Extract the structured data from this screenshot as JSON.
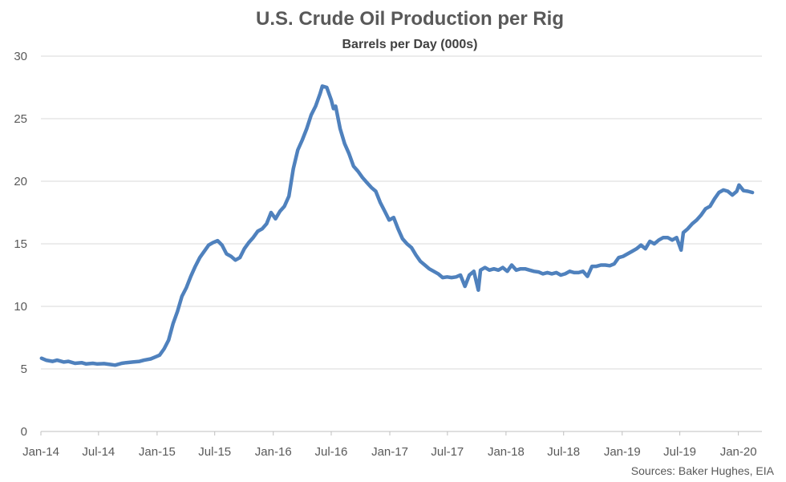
{
  "chart_data": {
    "type": "line",
    "title": "U.S. Crude Oil Production per Rig",
    "subtitle": "Barrels per Day (000s)",
    "xlabel": "",
    "ylabel": "",
    "ylim": [
      0,
      30
    ],
    "yticks": [
      0,
      5,
      10,
      15,
      20,
      25,
      30
    ],
    "xlim": [
      "2014-01-01",
      "2020-03-15"
    ],
    "xticks": [
      "Jan-14",
      "Jul-14",
      "Jan-15",
      "Jul-15",
      "Jan-16",
      "Jul-16",
      "Jan-17",
      "Jul-17",
      "Jan-18",
      "Jul-18",
      "Jan-19",
      "Jul-19",
      "Jan-20"
    ],
    "grid": "horizontal",
    "legend": "none",
    "series": [
      {
        "color": "#4f81bd",
        "points": [
          [
            "2014-01-03",
            5.85
          ],
          [
            "2014-01-17",
            5.7
          ],
          [
            "2014-02-07",
            5.6
          ],
          [
            "2014-02-21",
            5.7
          ],
          [
            "2014-03-14",
            5.55
          ],
          [
            "2014-03-28",
            5.6
          ],
          [
            "2014-04-18",
            5.45
          ],
          [
            "2014-05-09",
            5.5
          ],
          [
            "2014-05-23",
            5.4
          ],
          [
            "2014-06-13",
            5.45
          ],
          [
            "2014-06-27",
            5.4
          ],
          [
            "2014-07-18",
            5.42
          ],
          [
            "2014-08-08",
            5.35
          ],
          [
            "2014-08-22",
            5.3
          ],
          [
            "2014-09-12",
            5.45
          ],
          [
            "2014-09-26",
            5.5
          ],
          [
            "2014-10-17",
            5.55
          ],
          [
            "2014-11-07",
            5.6
          ],
          [
            "2014-11-21",
            5.7
          ],
          [
            "2014-12-12",
            5.8
          ],
          [
            "2014-12-26",
            5.95
          ],
          [
            "2015-01-09",
            6.1
          ],
          [
            "2015-01-23",
            6.6
          ],
          [
            "2015-02-06",
            7.3
          ],
          [
            "2015-02-20",
            8.6
          ],
          [
            "2015-03-06",
            9.6
          ],
          [
            "2015-03-20",
            10.8
          ],
          [
            "2015-04-03",
            11.5
          ],
          [
            "2015-04-17",
            12.4
          ],
          [
            "2015-05-01",
            13.2
          ],
          [
            "2015-05-15",
            13.9
          ],
          [
            "2015-05-29",
            14.4
          ],
          [
            "2015-06-12",
            14.9
          ],
          [
            "2015-06-26",
            15.1
          ],
          [
            "2015-07-10",
            15.25
          ],
          [
            "2015-07-24",
            14.9
          ],
          [
            "2015-08-07",
            14.2
          ],
          [
            "2015-08-21",
            14.0
          ],
          [
            "2015-09-04",
            13.7
          ],
          [
            "2015-09-18",
            13.9
          ],
          [
            "2015-10-02",
            14.6
          ],
          [
            "2015-10-16",
            15.1
          ],
          [
            "2015-10-30",
            15.5
          ],
          [
            "2015-11-13",
            16.0
          ],
          [
            "2015-11-27",
            16.2
          ],
          [
            "2015-12-11",
            16.6
          ],
          [
            "2015-12-25",
            17.5
          ],
          [
            "2016-01-08",
            17.0
          ],
          [
            "2016-01-22",
            17.6
          ],
          [
            "2016-02-05",
            18.0
          ],
          [
            "2016-02-19",
            18.8
          ],
          [
            "2016-03-04",
            21.0
          ],
          [
            "2016-03-18",
            22.5
          ],
          [
            "2016-04-01",
            23.3
          ],
          [
            "2016-04-15",
            24.2
          ],
          [
            "2016-04-29",
            25.3
          ],
          [
            "2016-05-13",
            26.0
          ],
          [
            "2016-05-27",
            27.0
          ],
          [
            "2016-06-03",
            27.6
          ],
          [
            "2016-06-17",
            27.5
          ],
          [
            "2016-07-01",
            26.5
          ],
          [
            "2016-07-08",
            25.8
          ],
          [
            "2016-07-15",
            26.0
          ],
          [
            "2016-07-29",
            24.2
          ],
          [
            "2016-08-12",
            23.0
          ],
          [
            "2016-08-26",
            22.2
          ],
          [
            "2016-09-09",
            21.2
          ],
          [
            "2016-09-23",
            20.8
          ],
          [
            "2016-10-07",
            20.3
          ],
          [
            "2016-10-21",
            19.9
          ],
          [
            "2016-11-04",
            19.5
          ],
          [
            "2016-11-18",
            19.2
          ],
          [
            "2016-12-02",
            18.3
          ],
          [
            "2016-12-16",
            17.6
          ],
          [
            "2016-12-30",
            16.9
          ],
          [
            "2017-01-13",
            17.1
          ],
          [
            "2017-01-27",
            16.2
          ],
          [
            "2017-02-10",
            15.4
          ],
          [
            "2017-02-24",
            15.0
          ],
          [
            "2017-03-10",
            14.7
          ],
          [
            "2017-03-24",
            14.1
          ],
          [
            "2017-04-07",
            13.6
          ],
          [
            "2017-04-21",
            13.3
          ],
          [
            "2017-05-05",
            13.0
          ],
          [
            "2017-05-19",
            12.8
          ],
          [
            "2017-06-02",
            12.6
          ],
          [
            "2017-06-16",
            12.3
          ],
          [
            "2017-06-30",
            12.35
          ],
          [
            "2017-07-14",
            12.3
          ],
          [
            "2017-07-28",
            12.35
          ],
          [
            "2017-08-11",
            12.5
          ],
          [
            "2017-08-25",
            11.6
          ],
          [
            "2017-09-08",
            12.5
          ],
          [
            "2017-09-22",
            12.8
          ],
          [
            "2017-10-06",
            11.3
          ],
          [
            "2017-10-13",
            12.9
          ],
          [
            "2017-10-27",
            13.1
          ],
          [
            "2017-11-10",
            12.9
          ],
          [
            "2017-11-24",
            13.0
          ],
          [
            "2017-12-08",
            12.9
          ],
          [
            "2017-12-22",
            13.1
          ],
          [
            "2018-01-05",
            12.8
          ],
          [
            "2018-01-19",
            13.3
          ],
          [
            "2018-02-02",
            12.9
          ],
          [
            "2018-02-16",
            13.0
          ],
          [
            "2018-03-02",
            13.0
          ],
          [
            "2018-03-16",
            12.9
          ],
          [
            "2018-03-30",
            12.8
          ],
          [
            "2018-04-13",
            12.75
          ],
          [
            "2018-04-27",
            12.6
          ],
          [
            "2018-05-11",
            12.7
          ],
          [
            "2018-05-25",
            12.6
          ],
          [
            "2018-06-08",
            12.7
          ],
          [
            "2018-06-22",
            12.5
          ],
          [
            "2018-07-06",
            12.6
          ],
          [
            "2018-07-20",
            12.8
          ],
          [
            "2018-08-03",
            12.7
          ],
          [
            "2018-08-17",
            12.7
          ],
          [
            "2018-08-31",
            12.8
          ],
          [
            "2018-09-14",
            12.4
          ],
          [
            "2018-09-28",
            13.2
          ],
          [
            "2018-10-12",
            13.2
          ],
          [
            "2018-10-26",
            13.3
          ],
          [
            "2018-11-09",
            13.3
          ],
          [
            "2018-11-23",
            13.25
          ],
          [
            "2018-12-07",
            13.4
          ],
          [
            "2018-12-21",
            13.9
          ],
          [
            "2019-01-04",
            14.0
          ],
          [
            "2019-01-18",
            14.2
          ],
          [
            "2019-02-01",
            14.4
          ],
          [
            "2019-02-15",
            14.6
          ],
          [
            "2019-03-01",
            14.9
          ],
          [
            "2019-03-15",
            14.6
          ],
          [
            "2019-03-29",
            15.2
          ],
          [
            "2019-04-12",
            15.0
          ],
          [
            "2019-04-26",
            15.3
          ],
          [
            "2019-05-10",
            15.5
          ],
          [
            "2019-05-24",
            15.5
          ],
          [
            "2019-06-07",
            15.3
          ],
          [
            "2019-06-21",
            15.5
          ],
          [
            "2019-07-05",
            14.5
          ],
          [
            "2019-07-12",
            15.9
          ],
          [
            "2019-07-26",
            16.2
          ],
          [
            "2019-08-09",
            16.6
          ],
          [
            "2019-08-23",
            16.9
          ],
          [
            "2019-09-06",
            17.3
          ],
          [
            "2019-09-20",
            17.8
          ],
          [
            "2019-10-04",
            18.0
          ],
          [
            "2019-10-18",
            18.6
          ],
          [
            "2019-11-01",
            19.1
          ],
          [
            "2019-11-15",
            19.3
          ],
          [
            "2019-11-29",
            19.2
          ],
          [
            "2019-12-13",
            18.9
          ],
          [
            "2019-12-27",
            19.2
          ],
          [
            "2020-01-03",
            19.7
          ],
          [
            "2020-01-17",
            19.25
          ],
          [
            "2020-01-31",
            19.2
          ],
          [
            "2020-02-14",
            19.1
          ]
        ]
      }
    ]
  },
  "source_text": "Sources: Baker Hughes, EIA"
}
